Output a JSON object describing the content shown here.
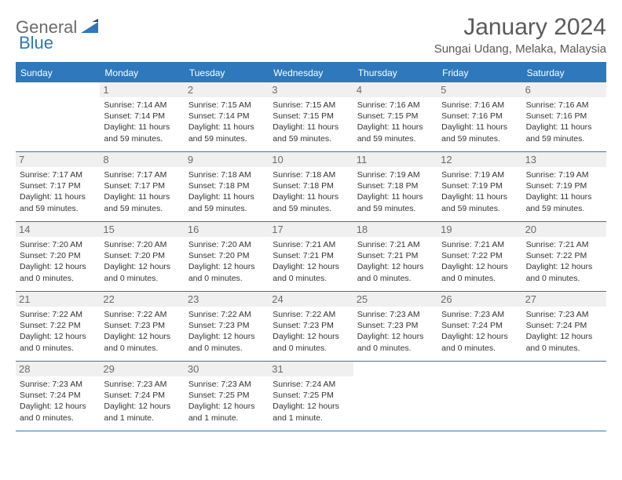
{
  "logo": {
    "part1": "General",
    "part2": "Blue"
  },
  "title": "January 2024",
  "location": "Sungai Udang, Melaka, Malaysia",
  "colors": {
    "accent": "#2e78bb",
    "header_bg": "#2e78bb",
    "header_text": "#ffffff",
    "daynum_bg": "#f0f0f0",
    "daynum_text": "#6b6b6b",
    "body_text": "#333333",
    "title_text": "#5a5a5a"
  },
  "day_names": [
    "Sunday",
    "Monday",
    "Tuesday",
    "Wednesday",
    "Thursday",
    "Friday",
    "Saturday"
  ],
  "weeks": [
    [
      null,
      {
        "n": "1",
        "sr": "7:14 AM",
        "ss": "7:14 PM",
        "dl": "11 hours and 59 minutes."
      },
      {
        "n": "2",
        "sr": "7:15 AM",
        "ss": "7:14 PM",
        "dl": "11 hours and 59 minutes."
      },
      {
        "n": "3",
        "sr": "7:15 AM",
        "ss": "7:15 PM",
        "dl": "11 hours and 59 minutes."
      },
      {
        "n": "4",
        "sr": "7:16 AM",
        "ss": "7:15 PM",
        "dl": "11 hours and 59 minutes."
      },
      {
        "n": "5",
        "sr": "7:16 AM",
        "ss": "7:16 PM",
        "dl": "11 hours and 59 minutes."
      },
      {
        "n": "6",
        "sr": "7:16 AM",
        "ss": "7:16 PM",
        "dl": "11 hours and 59 minutes."
      }
    ],
    [
      {
        "n": "7",
        "sr": "7:17 AM",
        "ss": "7:17 PM",
        "dl": "11 hours and 59 minutes."
      },
      {
        "n": "8",
        "sr": "7:17 AM",
        "ss": "7:17 PM",
        "dl": "11 hours and 59 minutes."
      },
      {
        "n": "9",
        "sr": "7:18 AM",
        "ss": "7:18 PM",
        "dl": "11 hours and 59 minutes."
      },
      {
        "n": "10",
        "sr": "7:18 AM",
        "ss": "7:18 PM",
        "dl": "11 hours and 59 minutes."
      },
      {
        "n": "11",
        "sr": "7:19 AM",
        "ss": "7:18 PM",
        "dl": "11 hours and 59 minutes."
      },
      {
        "n": "12",
        "sr": "7:19 AM",
        "ss": "7:19 PM",
        "dl": "11 hours and 59 minutes."
      },
      {
        "n": "13",
        "sr": "7:19 AM",
        "ss": "7:19 PM",
        "dl": "11 hours and 59 minutes."
      }
    ],
    [
      {
        "n": "14",
        "sr": "7:20 AM",
        "ss": "7:20 PM",
        "dl": "12 hours and 0 minutes."
      },
      {
        "n": "15",
        "sr": "7:20 AM",
        "ss": "7:20 PM",
        "dl": "12 hours and 0 minutes."
      },
      {
        "n": "16",
        "sr": "7:20 AM",
        "ss": "7:20 PM",
        "dl": "12 hours and 0 minutes."
      },
      {
        "n": "17",
        "sr": "7:21 AM",
        "ss": "7:21 PM",
        "dl": "12 hours and 0 minutes."
      },
      {
        "n": "18",
        "sr": "7:21 AM",
        "ss": "7:21 PM",
        "dl": "12 hours and 0 minutes."
      },
      {
        "n": "19",
        "sr": "7:21 AM",
        "ss": "7:22 PM",
        "dl": "12 hours and 0 minutes."
      },
      {
        "n": "20",
        "sr": "7:21 AM",
        "ss": "7:22 PM",
        "dl": "12 hours and 0 minutes."
      }
    ],
    [
      {
        "n": "21",
        "sr": "7:22 AM",
        "ss": "7:22 PM",
        "dl": "12 hours and 0 minutes."
      },
      {
        "n": "22",
        "sr": "7:22 AM",
        "ss": "7:23 PM",
        "dl": "12 hours and 0 minutes."
      },
      {
        "n": "23",
        "sr": "7:22 AM",
        "ss": "7:23 PM",
        "dl": "12 hours and 0 minutes."
      },
      {
        "n": "24",
        "sr": "7:22 AM",
        "ss": "7:23 PM",
        "dl": "12 hours and 0 minutes."
      },
      {
        "n": "25",
        "sr": "7:23 AM",
        "ss": "7:23 PM",
        "dl": "12 hours and 0 minutes."
      },
      {
        "n": "26",
        "sr": "7:23 AM",
        "ss": "7:24 PM",
        "dl": "12 hours and 0 minutes."
      },
      {
        "n": "27",
        "sr": "7:23 AM",
        "ss": "7:24 PM",
        "dl": "12 hours and 0 minutes."
      }
    ],
    [
      {
        "n": "28",
        "sr": "7:23 AM",
        "ss": "7:24 PM",
        "dl": "12 hours and 0 minutes."
      },
      {
        "n": "29",
        "sr": "7:23 AM",
        "ss": "7:24 PM",
        "dl": "12 hours and 1 minute."
      },
      {
        "n": "30",
        "sr": "7:23 AM",
        "ss": "7:25 PM",
        "dl": "12 hours and 1 minute."
      },
      {
        "n": "31",
        "sr": "7:24 AM",
        "ss": "7:25 PM",
        "dl": "12 hours and 1 minute."
      },
      null,
      null,
      null
    ]
  ],
  "labels": {
    "sunrise": "Sunrise: ",
    "sunset": "Sunset: ",
    "daylight": "Daylight: "
  }
}
